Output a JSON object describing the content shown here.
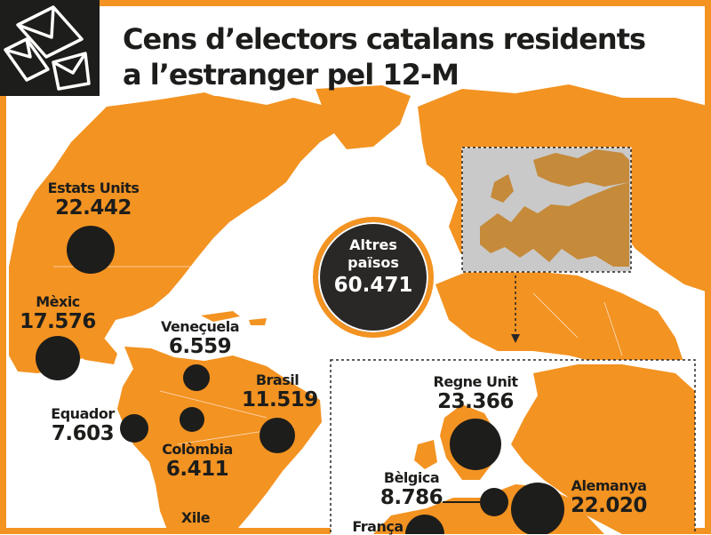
{
  "title": {
    "line1": "Cens d’electors catalans residents",
    "line2": "a l’estranger pel 12-M"
  },
  "icon": "envelope-icon",
  "colors": {
    "land": "#f39322",
    "sea": "#ffffff",
    "bubble": "#1d1d1b",
    "inset_bg": "#c9c9c9",
    "inset_land": "#c58a3a"
  },
  "countries": [
    {
      "id": "estats-units",
      "name": "Estats Units",
      "value": "22.442"
    },
    {
      "id": "mexic",
      "name": "Mèxic",
      "value": "17.576"
    },
    {
      "id": "veneçuela",
      "name": "Veneçuela",
      "value": "6.559"
    },
    {
      "id": "brasil",
      "name": "Brasil",
      "value": "11.519"
    },
    {
      "id": "equador",
      "name": "Equador",
      "value": "7.603"
    },
    {
      "id": "colombia",
      "name": "Colòmbia",
      "value": "6.411"
    },
    {
      "id": "xile",
      "name": "Xile",
      "value": ""
    },
    {
      "id": "regne-unit",
      "name": "Regne Unit",
      "value": "23.366"
    },
    {
      "id": "belgica",
      "name": "Bèlgica",
      "value": "8.786"
    },
    {
      "id": "alemanya",
      "name": "Alemanya",
      "value": "22.020"
    },
    {
      "id": "franca",
      "name": "França",
      "value": ""
    }
  ],
  "altres": {
    "name_line1": "Altres",
    "name_line2": "països",
    "value": "60.471"
  }
}
